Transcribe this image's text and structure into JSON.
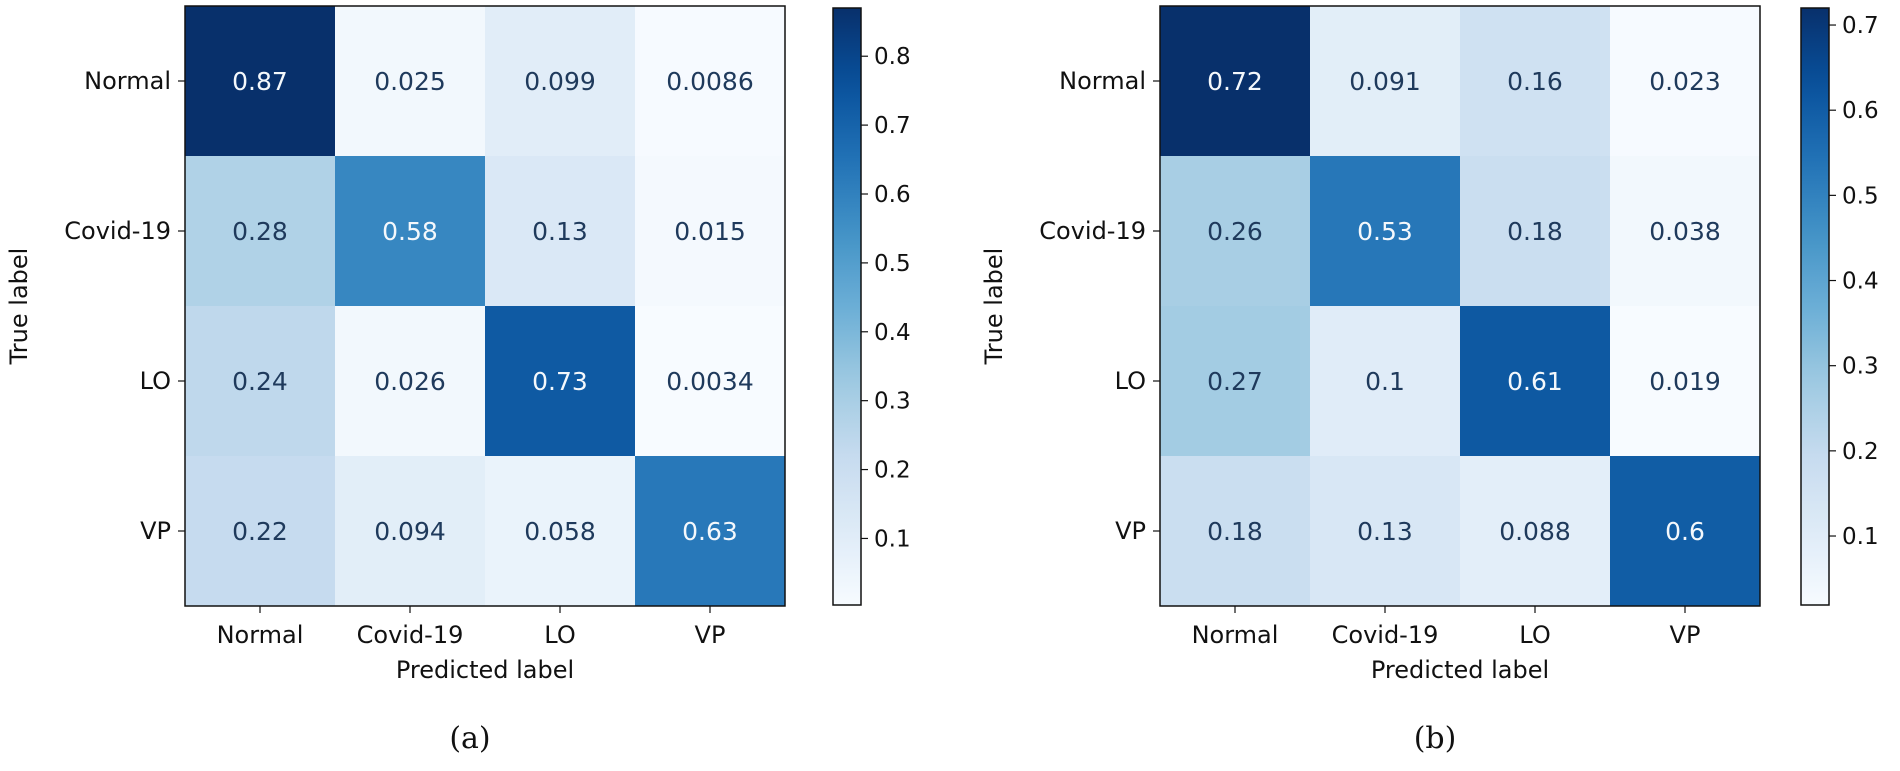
{
  "chart_data": [
    {
      "type": "heatmap",
      "caption": "(a)",
      "xlabel": "Predicted label",
      "ylabel": "True label",
      "x_categories": [
        "Normal",
        "Covid-19",
        "LO",
        "VP"
      ],
      "y_categories": [
        "Normal",
        "Covid-19",
        "LO",
        "VP"
      ],
      "values": [
        [
          0.87,
          0.025,
          0.099,
          0.0086
        ],
        [
          0.28,
          0.58,
          0.13,
          0.015
        ],
        [
          0.24,
          0.026,
          0.73,
          0.0034
        ],
        [
          0.22,
          0.094,
          0.058,
          0.63
        ]
      ],
      "value_labels": [
        [
          "0.87",
          "0.025",
          "0.099",
          "0.0086"
        ],
        [
          "0.28",
          "0.58",
          "0.13",
          "0.015"
        ],
        [
          "0.24",
          "0.026",
          "0.73",
          "0.0034"
        ],
        [
          "0.22",
          "0.094",
          "0.058",
          "0.63"
        ]
      ],
      "colormap": "Blues",
      "colorbar": {
        "range": [
          0.0034,
          0.87
        ],
        "ticks": [
          0.1,
          0.2,
          0.3,
          0.4,
          0.5,
          0.6,
          0.7,
          0.8
        ],
        "tick_labels": [
          "0.1",
          "0.2",
          "0.3",
          "0.4",
          "0.5",
          "0.6",
          "0.7",
          "0.8"
        ]
      }
    },
    {
      "type": "heatmap",
      "caption": "(b)",
      "xlabel": "Predicted label",
      "ylabel": "True label",
      "x_categories": [
        "Normal",
        "Covid-19",
        "LO",
        "VP"
      ],
      "y_categories": [
        "Normal",
        "Covid-19",
        "LO",
        "VP"
      ],
      "values": [
        [
          0.72,
          0.091,
          0.16,
          0.023
        ],
        [
          0.26,
          0.53,
          0.18,
          0.038
        ],
        [
          0.27,
          0.1,
          0.61,
          0.019
        ],
        [
          0.18,
          0.13,
          0.088,
          0.6
        ]
      ],
      "value_labels": [
        [
          "0.72",
          "0.091",
          "0.16",
          "0.023"
        ],
        [
          "0.26",
          "0.53",
          "0.18",
          "0.038"
        ],
        [
          "0.27",
          "0.1",
          "0.61",
          "0.019"
        ],
        [
          "0.18",
          "0.13",
          "0.088",
          "0.6"
        ]
      ],
      "colormap": "Blues",
      "colorbar": {
        "range": [
          0.019,
          0.72
        ],
        "ticks": [
          0.1,
          0.2,
          0.3,
          0.4,
          0.5,
          0.6,
          0.7
        ],
        "tick_labels": [
          "0.1",
          "0.2",
          "0.3",
          "0.4",
          "0.5",
          "0.6",
          "0.7"
        ]
      }
    }
  ]
}
